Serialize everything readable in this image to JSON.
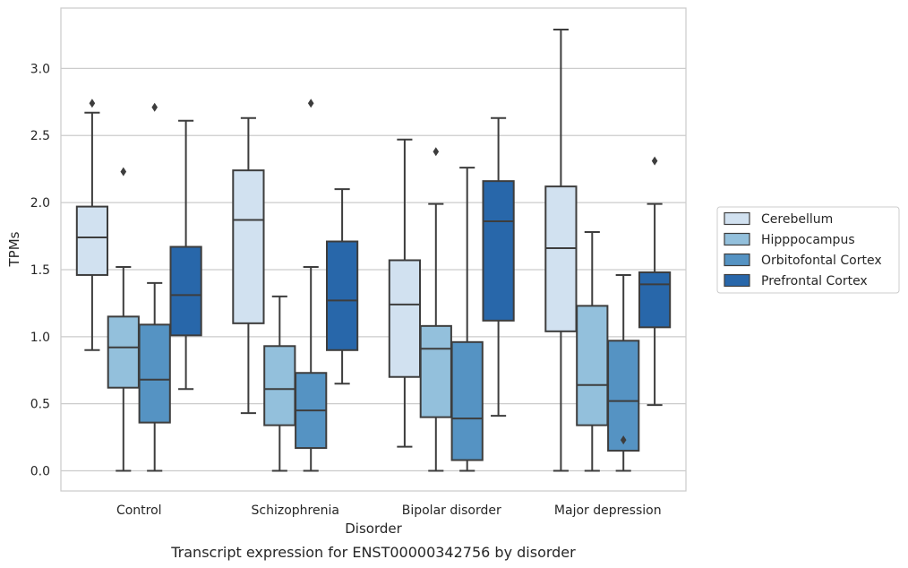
{
  "chart_data": {
    "type": "box",
    "title": "",
    "caption": "Transcript expression for ENST00000342756 by disorder",
    "xlabel": "Disorder",
    "ylabel": "TPMs",
    "ylim": [
      -0.15,
      3.45
    ],
    "yticks": [
      0.0,
      0.5,
      1.0,
      1.5,
      2.0,
      2.5,
      3.0
    ],
    "ytick_labels": [
      "0.0",
      "0.5",
      "1.0",
      "1.5",
      "2.0",
      "2.5",
      "3.0"
    ],
    "grid": "horizontal",
    "legend_position": "right",
    "categories": [
      "Control",
      "Schizophrenia",
      "Bipolar disorder",
      "Major depression"
    ],
    "series": [
      {
        "name": "Cerebellum",
        "color": "#d1e1f0",
        "boxes": [
          {
            "whisker_low": 0.9,
            "q1": 1.46,
            "median": 1.74,
            "q3": 1.97,
            "whisker_high": 2.67,
            "outliers": [
              2.74
            ]
          },
          {
            "whisker_low": 0.43,
            "q1": 1.1,
            "median": 1.87,
            "q3": 2.24,
            "whisker_high": 2.63,
            "outliers": []
          },
          {
            "whisker_low": 0.18,
            "q1": 0.7,
            "median": 1.24,
            "q3": 1.57,
            "whisker_high": 2.47,
            "outliers": []
          },
          {
            "whisker_low": 0.0,
            "q1": 1.04,
            "median": 1.66,
            "q3": 2.12,
            "whisker_high": 3.29,
            "outliers": []
          }
        ]
      },
      {
        "name": "Hipppocampus",
        "color": "#93c0dc",
        "boxes": [
          {
            "whisker_low": 0.0,
            "q1": 0.62,
            "median": 0.92,
            "q3": 1.15,
            "whisker_high": 1.52,
            "outliers": [
              2.23
            ]
          },
          {
            "whisker_low": 0.0,
            "q1": 0.34,
            "median": 0.61,
            "q3": 0.93,
            "whisker_high": 1.3,
            "outliers": []
          },
          {
            "whisker_low": 0.0,
            "q1": 0.4,
            "median": 0.91,
            "q3": 1.08,
            "whisker_high": 1.99,
            "outliers": [
              2.38
            ]
          },
          {
            "whisker_low": 0.0,
            "q1": 0.34,
            "median": 0.64,
            "q3": 1.23,
            "whisker_high": 1.78,
            "outliers": []
          }
        ]
      },
      {
        "name": "Orbitofontal Cortex",
        "color": "#5593c3",
        "boxes": [
          {
            "whisker_low": 0.0,
            "q1": 0.36,
            "median": 0.68,
            "q3": 1.09,
            "whisker_high": 1.4,
            "outliers": [
              2.71
            ]
          },
          {
            "whisker_low": 0.0,
            "q1": 0.17,
            "median": 0.45,
            "q3": 0.73,
            "whisker_high": 1.52,
            "outliers": [
              2.74
            ]
          },
          {
            "whisker_low": 0.0,
            "q1": 0.08,
            "median": 0.39,
            "q3": 0.96,
            "whisker_high": 2.26,
            "outliers": []
          },
          {
            "whisker_low": 0.0,
            "q1": 0.15,
            "median": 0.52,
            "q3": 0.97,
            "whisker_high": 1.46,
            "outliers": [
              0.23
            ]
          }
        ]
      },
      {
        "name": "Prefrontal Cortex",
        "color": "#2867aa",
        "boxes": [
          {
            "whisker_low": 0.61,
            "q1": 1.01,
            "median": 1.31,
            "q3": 1.67,
            "whisker_high": 2.61,
            "outliers": []
          },
          {
            "whisker_low": 0.65,
            "q1": 0.9,
            "median": 1.27,
            "q3": 1.71,
            "whisker_high": 2.1,
            "outliers": []
          },
          {
            "whisker_low": 0.41,
            "q1": 1.12,
            "median": 1.86,
            "q3": 2.16,
            "whisker_high": 2.63,
            "outliers": []
          },
          {
            "whisker_low": 0.49,
            "q1": 1.07,
            "median": 1.39,
            "q3": 1.48,
            "whisker_high": 1.99,
            "outliers": [
              2.31
            ]
          }
        ]
      }
    ]
  }
}
